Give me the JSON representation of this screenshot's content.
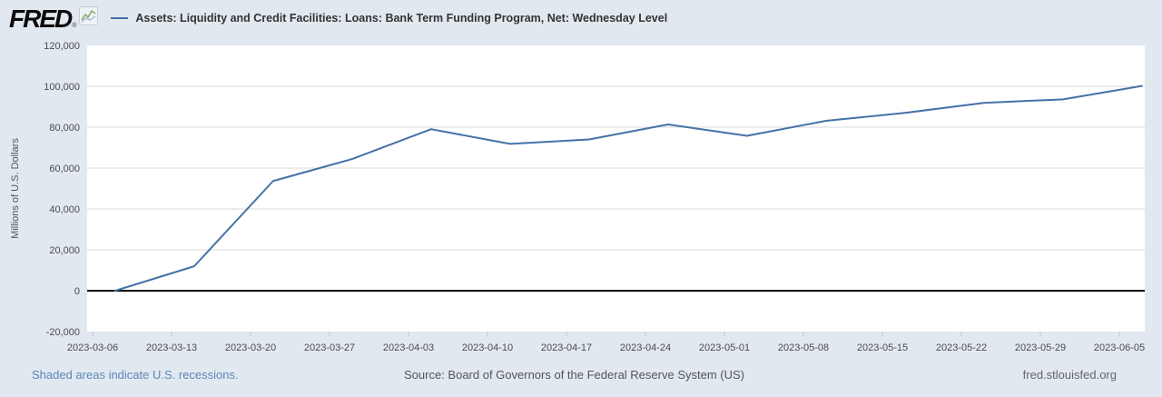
{
  "header": {
    "logo_text": "FRED",
    "logo_registered": "®",
    "legend_label": "Assets: Liquidity and Credit Facilities: Loans: Bank Term Funding Program, Net: Wednesday Level"
  },
  "chart_data": {
    "type": "line",
    "title": "Assets: Liquidity and Credit Facilities: Loans: Bank Term Funding Program, Net: Wednesday Level",
    "ylabel": "Millions of U.S. Dollars",
    "ylim": [
      -20000,
      120000
    ],
    "y_ticks": [
      120000,
      100000,
      80000,
      60000,
      40000,
      20000,
      0,
      -20000
    ],
    "x_start_date": "2023-03-06",
    "x_tick_labels": [
      "2023-03-06",
      "2023-03-13",
      "2023-03-20",
      "2023-03-27",
      "2023-04-03",
      "2023-04-10",
      "2023-04-17",
      "2023-04-24",
      "2023-05-01",
      "2023-05-08",
      "2023-05-15",
      "2023-05-22",
      "2023-05-29",
      "2023-06-05"
    ],
    "grid": true,
    "legend_position": "top",
    "line_color": "#4572a7",
    "zero_line_color": "#000000",
    "series": [
      {
        "name": "Assets: Liquidity and Credit Facilities: Loans: Bank Term Funding Program, Net: Wednesday Level",
        "x": [
          "2023-03-08",
          "2023-03-15",
          "2023-03-22",
          "2023-03-29",
          "2023-04-05",
          "2023-04-12",
          "2023-04-19",
          "2023-04-26",
          "2023-05-03",
          "2023-05-10",
          "2023-05-17",
          "2023-05-24",
          "2023-05-31",
          "2023-06-07"
        ],
        "values": [
          0,
          11943,
          53669,
          64403,
          79021,
          71837,
          73982,
          81327,
          75778,
          83101,
          87006,
          91907,
          93615,
          100161
        ]
      }
    ]
  },
  "footer": {
    "recessions_note": "Shaded areas indicate U.S. recessions.",
    "source": "Source: Board of Governors of the Federal Reserve System (US)",
    "site": "fred.stlouisfed.org"
  }
}
